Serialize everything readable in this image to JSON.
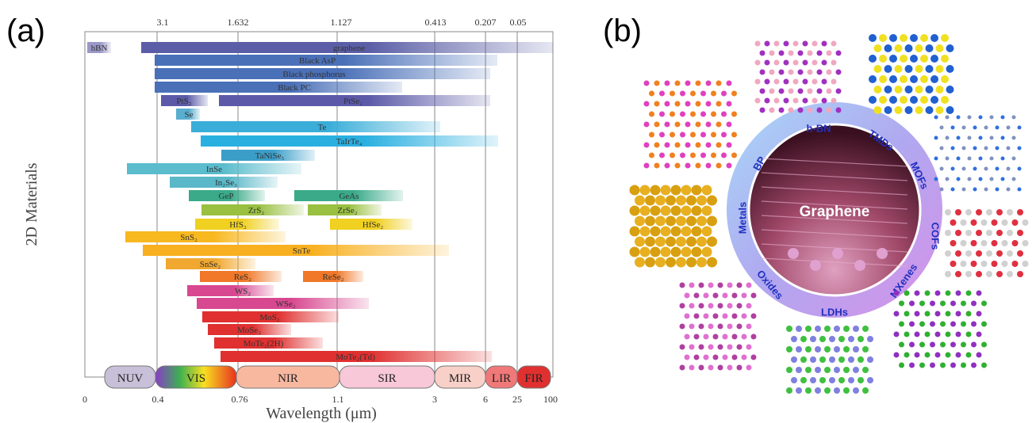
{
  "panel_a": {
    "label": "(a)",
    "y_axis_label": "2D Materials",
    "x_axis_label": "Wavelength (μm)",
    "top_ticks": [
      "3.1",
      "1.632",
      "1.127",
      "0.413",
      "0.207",
      "0.05"
    ],
    "bottom_ticks": [
      "0",
      "0.4",
      "0.76",
      "1.1",
      "3",
      "6",
      "25",
      "100"
    ],
    "bands": [
      "NUV",
      "VIS",
      "NIR",
      "SIR",
      "MIR",
      "LIR",
      "FIR"
    ],
    "materials": [
      "hBN",
      "graphene",
      "Black AsP",
      "Black phosphorus",
      "Black PC",
      "PtS₂",
      "PtSe₂",
      "Se",
      "Te",
      "TaIrTe₄",
      "TaNiSe₅",
      "InSe",
      "In₂Se₃",
      "GeP",
      "GeAs",
      "ZrS₂",
      "ZrSe₂",
      "HfS₂",
      "HfSe₂",
      "SnS₂",
      "SnTe",
      "SnSe₂",
      "ReS₂",
      "ReSe₂",
      "WS₂",
      "WSe₂",
      "MoS₂",
      "MoSe₂",
      "MoTe₂(2H)",
      "MoTe₂(Td)"
    ]
  },
  "panel_b": {
    "label": "(b)",
    "center": "Graphene",
    "ring": [
      "h-BN",
      "TMDs",
      "MOFs",
      "COFs",
      "MXenes",
      "LDHs",
      "Oxides",
      "Metals",
      "BP"
    ]
  }
}
